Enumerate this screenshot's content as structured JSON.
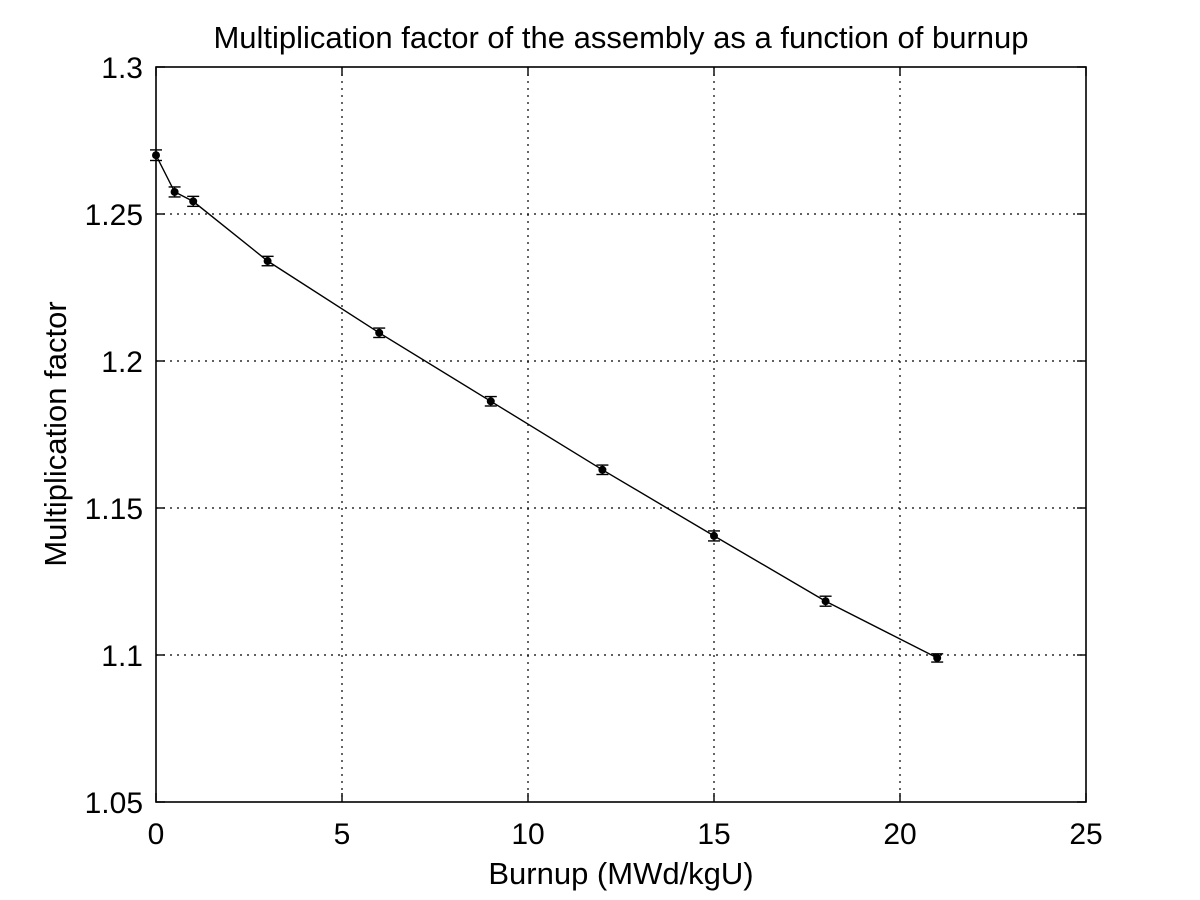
{
  "chart_data": {
    "type": "line",
    "title": "Multiplication factor of the assembly as a function of burnup",
    "xlabel": "Burnup (MWd/kgU)",
    "ylabel": "Multiplication factor",
    "xlim": [
      0,
      25
    ],
    "ylim": [
      1.05,
      1.3
    ],
    "xticks": [
      0,
      5,
      10,
      15,
      20,
      25
    ],
    "yticks": [
      1.05,
      1.1,
      1.15,
      1.2,
      1.25,
      1.3
    ],
    "xtick_labels": [
      "0",
      "5",
      "10",
      "15",
      "20",
      "25"
    ],
    "ytick_labels": [
      "1.05",
      "1.1",
      "1.15",
      "1.2",
      "1.25",
      "1.3"
    ],
    "grid": true,
    "legend": false,
    "series": [
      {
        "x": [
          0,
          0.5,
          1,
          3,
          6,
          9,
          12,
          15,
          18,
          21
        ],
        "y": [
          1.27,
          1.2575,
          1.2543,
          1.234,
          1.2096,
          1.1863,
          1.163,
          1.1405,
          1.1183,
          1.099
        ],
        "error": [
          0.0018,
          0.0017,
          0.0017,
          0.0016,
          0.0016,
          0.0016,
          0.0016,
          0.0017,
          0.0017,
          0.0014
        ],
        "color": "#000000",
        "marker": "circle"
      }
    ]
  }
}
